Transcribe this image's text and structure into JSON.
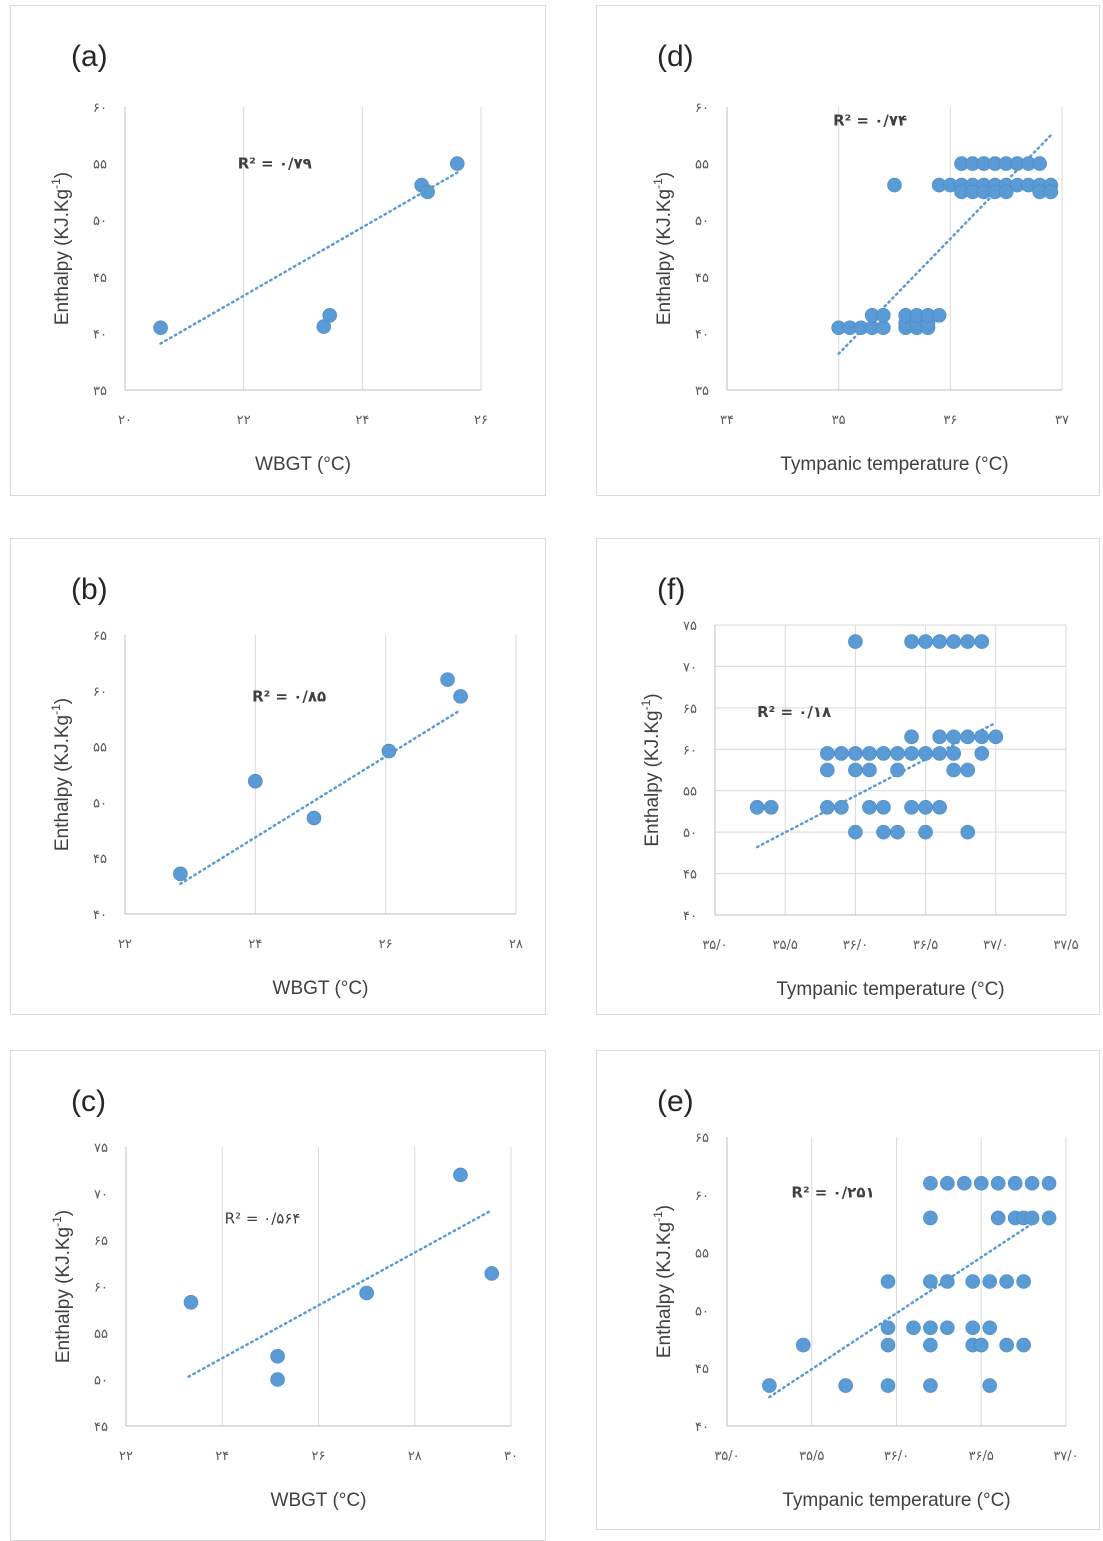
{
  "chart_data": [
    {
      "id": "a",
      "type": "scatter",
      "panel_label": "(a)",
      "xlabel": "WBGT (°C)",
      "ylabel": "Enthalpy (KJ.Kg-1)",
      "xlim": [
        20,
        26
      ],
      "ylim": [
        35,
        60
      ],
      "xticks": [
        20,
        22,
        24,
        26
      ],
      "yticks": [
        35,
        40,
        45,
        50,
        55,
        60
      ],
      "xtick_labels": [
        "۲۰",
        "۲۲",
        "۲۴",
        "۲۶"
      ],
      "ytick_labels": [
        "۳۵",
        "۴۰",
        "۴۵",
        "۵۰",
        "۵۵",
        "۶۰"
      ],
      "grid_x": true,
      "grid_y": false,
      "r2_label": "R² = ۰/۷۹",
      "r2_bold": true,
      "r2_pos": [
        21.9,
        55
      ],
      "trendline": [
        [
          20.6,
          39.1
        ],
        [
          25.6,
          54.2
        ]
      ],
      "points": [
        [
          20.6,
          40.5
        ],
        [
          23.35,
          40.6
        ],
        [
          23.45,
          41.6
        ],
        [
          25.0,
          53.1
        ],
        [
          25.1,
          52.5
        ],
        [
          25.6,
          55.0
        ]
      ]
    },
    {
      "id": "d",
      "type": "scatter",
      "panel_label": "(d)",
      "xlabel": "Tympanic temperature (°C)",
      "ylabel": "Enthalpy (KJ.Kg-1)",
      "xlim": [
        34,
        37
      ],
      "ylim": [
        35,
        60
      ],
      "xticks": [
        34,
        35,
        36,
        37
      ],
      "yticks": [
        35,
        40,
        45,
        50,
        55,
        60
      ],
      "xtick_labels": [
        "۳۴",
        "۳۵",
        "۳۶",
        "۳۷"
      ],
      "ytick_labels": [
        "۳۵",
        "۴۰",
        "۴۵",
        "۵۰",
        "۵۵",
        "۶۰"
      ],
      "grid_x": true,
      "grid_y": false,
      "r2_label": "R² = ۰/۷۴",
      "r2_bold": true,
      "r2_pos": [
        34.95,
        58.8
      ],
      "trendline": [
        [
          35.0,
          38.2
        ],
        [
          36.9,
          57.5
        ]
      ],
      "points": [
        [
          35.0,
          40.5
        ],
        [
          35.1,
          40.5
        ],
        [
          35.2,
          40.5
        ],
        [
          35.3,
          40.5
        ],
        [
          35.4,
          40.5
        ],
        [
          35.3,
          41.6
        ],
        [
          35.4,
          41.6
        ],
        [
          35.6,
          40.5
        ],
        [
          35.7,
          40.5
        ],
        [
          35.8,
          40.5
        ],
        [
          35.6,
          40.9
        ],
        [
          35.7,
          40.9
        ],
        [
          35.8,
          40.9
        ],
        [
          35.6,
          41.6
        ],
        [
          35.7,
          41.6
        ],
        [
          35.8,
          41.6
        ],
        [
          35.9,
          41.6
        ],
        [
          35.5,
          53.1
        ],
        [
          35.9,
          53.1
        ],
        [
          36.0,
          53.1
        ],
        [
          36.1,
          53.1
        ],
        [
          36.2,
          53.1
        ],
        [
          36.3,
          53.1
        ],
        [
          36.4,
          53.1
        ],
        [
          36.5,
          53.1
        ],
        [
          36.6,
          53.1
        ],
        [
          36.7,
          53.1
        ],
        [
          36.8,
          53.1
        ],
        [
          36.9,
          53.1
        ],
        [
          36.1,
          52.5
        ],
        [
          36.2,
          52.5
        ],
        [
          36.3,
          52.5
        ],
        [
          36.4,
          52.5
        ],
        [
          36.5,
          52.5
        ],
        [
          36.8,
          52.5
        ],
        [
          36.9,
          52.5
        ],
        [
          36.1,
          55.0
        ],
        [
          36.2,
          55.0
        ],
        [
          36.3,
          55.0
        ],
        [
          36.4,
          55.0
        ],
        [
          36.5,
          55.0
        ],
        [
          36.6,
          55.0
        ],
        [
          36.7,
          55.0
        ],
        [
          36.8,
          55.0
        ]
      ]
    },
    {
      "id": "b",
      "type": "scatter",
      "panel_label": "(b)",
      "xlabel": "WBGT (°C)",
      "ylabel": "Enthalpy (KJ.Kg-1)",
      "xlim": [
        22,
        28
      ],
      "ylim": [
        40,
        65
      ],
      "xticks": [
        22,
        24,
        26,
        28
      ],
      "yticks": [
        40,
        45,
        50,
        55,
        60,
        65
      ],
      "xtick_labels": [
        "۲۲",
        "۲۴",
        "۲۶",
        "۲۸"
      ],
      "ytick_labels": [
        "۴۰",
        "۴۵",
        "۵۰",
        "۵۵",
        "۶۰",
        "۶۵"
      ],
      "grid_x": true,
      "grid_y": false,
      "r2_label": "R² = ۰/۸۵",
      "r2_bold": true,
      "r2_pos": [
        23.95,
        59.5
      ],
      "trendline": [
        [
          22.85,
          42.7
        ],
        [
          27.1,
          58.1
        ]
      ],
      "points": [
        [
          22.85,
          43.6
        ],
        [
          24.0,
          51.9
        ],
        [
          24.9,
          48.6
        ],
        [
          26.05,
          54.6
        ],
        [
          26.95,
          61.0
        ],
        [
          27.15,
          59.5
        ]
      ]
    },
    {
      "id": "f",
      "type": "scatter",
      "panel_label": "(f)",
      "xlabel": "Tympanic temperature (°C)",
      "ylabel": "Enthalpy (KJ.Kg-1)",
      "xlim": [
        35.0,
        37.5
      ],
      "ylim": [
        40,
        75
      ],
      "xticks": [
        35.0,
        35.5,
        36.0,
        36.5,
        37.0,
        37.5
      ],
      "yticks": [
        40,
        45,
        50,
        55,
        60,
        65,
        70,
        75
      ],
      "xtick_labels": [
        "۳۵/۰",
        "۳۵/۵",
        "۳۶/۰",
        "۳۶/۵",
        "۳۷/۰",
        "۳۷/۵"
      ],
      "ytick_labels": [
        "۴۰",
        "۴۵",
        "۵۰",
        "۵۵",
        "۶۰",
        "۶۵",
        "۷۰",
        "۷۵"
      ],
      "grid_x": true,
      "grid_y": true,
      "r2_label": "R² = ۰/۱۸",
      "r2_bold": true,
      "r2_pos": [
        35.3,
        64.5
      ],
      "trendline": [
        [
          35.3,
          48.2
        ],
        [
          37.0,
          63.2
        ]
      ],
      "points": [
        [
          35.3,
          53
        ],
        [
          35.4,
          53
        ],
        [
          35.8,
          53
        ],
        [
          35.9,
          53
        ],
        [
          36.1,
          53
        ],
        [
          36.2,
          53
        ],
        [
          36.4,
          53
        ],
        [
          36.5,
          53
        ],
        [
          36.6,
          53
        ],
        [
          36.0,
          50
        ],
        [
          36.2,
          50
        ],
        [
          36.3,
          50
        ],
        [
          36.5,
          50
        ],
        [
          36.8,
          50
        ],
        [
          35.8,
          57.5
        ],
        [
          36.0,
          57.5
        ],
        [
          36.1,
          57.5
        ],
        [
          36.3,
          57.5
        ],
        [
          36.7,
          57.5
        ],
        [
          36.8,
          57.5
        ],
        [
          35.8,
          59.5
        ],
        [
          35.9,
          59.5
        ],
        [
          36.0,
          59.5
        ],
        [
          36.1,
          59.5
        ],
        [
          36.2,
          59.5
        ],
        [
          36.3,
          59.5
        ],
        [
          36.4,
          59.5
        ],
        [
          36.5,
          59.5
        ],
        [
          36.6,
          59.5
        ],
        [
          36.7,
          59.5
        ],
        [
          36.9,
          59.5
        ],
        [
          36.4,
          61.5
        ],
        [
          36.6,
          61.5
        ],
        [
          36.7,
          61.5
        ],
        [
          36.8,
          61.5
        ],
        [
          36.9,
          61.5
        ],
        [
          37.0,
          61.5
        ],
        [
          36.0,
          73
        ],
        [
          36.4,
          73
        ],
        [
          36.5,
          73
        ],
        [
          36.6,
          73
        ],
        [
          36.7,
          73
        ],
        [
          36.8,
          73
        ],
        [
          36.9,
          73
        ]
      ]
    },
    {
      "id": "c",
      "type": "scatter",
      "panel_label": "(c)",
      "xlabel": "WBGT (°C)",
      "ylabel": "Enthalpy (KJ.Kg-1)",
      "xlim": [
        22,
        30
      ],
      "ylim": [
        45,
        75
      ],
      "xticks": [
        22,
        24,
        26,
        28,
        30
      ],
      "yticks": [
        45,
        50,
        55,
        60,
        65,
        70,
        75
      ],
      "xtick_labels": [
        "۲۲",
        "۲۴",
        "۲۶",
        "۲۸",
        "۳۰"
      ],
      "ytick_labels": [
        "۴۵",
        "۵۰",
        "۵۵",
        "۶۰",
        "۶۵",
        "۷۰",
        "۷۵"
      ],
      "grid_x": true,
      "grid_y": false,
      "r2_label": "R² = ۰/۵۶۴",
      "r2_bold": false,
      "r2_pos": [
        24.05,
        67.3
      ],
      "trendline": [
        [
          23.3,
          50.3
        ],
        [
          29.6,
          68.2
        ]
      ],
      "points": [
        [
          23.35,
          58.3
        ],
        [
          25.15,
          52.5
        ],
        [
          25.15,
          50.0
        ],
        [
          27.0,
          59.3
        ],
        [
          28.95,
          72.0
        ],
        [
          29.6,
          61.4
        ]
      ]
    },
    {
      "id": "e",
      "type": "scatter",
      "panel_label": "(e)",
      "xlabel": "Tympanic temperature (°C)",
      "ylabel": "Enthalpy (KJ.Kg-1)",
      "xlim": [
        35.0,
        37.0
      ],
      "ylim": [
        40,
        65
      ],
      "xticks": [
        35.0,
        35.5,
        36.0,
        36.5,
        37.0
      ],
      "yticks": [
        40,
        45,
        50,
        55,
        60,
        65
      ],
      "xtick_labels": [
        "۳۵/۰",
        "۳۵/۵",
        "۳۶/۰",
        "۳۶/۵",
        "۳۷/۰"
      ],
      "ytick_labels": [
        "۴۰",
        "۴۵",
        "۵۰",
        "۵۵",
        "۶۰",
        "۶۵"
      ],
      "grid_x": true,
      "grid_y": false,
      "r2_label": "R² = ۰/۲۵۱",
      "r2_bold": true,
      "r2_pos": [
        35.38,
        60.2
      ],
      "trendline": [
        [
          35.25,
          42.5
        ],
        [
          36.8,
          57.5
        ]
      ],
      "points": [
        [
          35.25,
          43.5
        ],
        [
          35.45,
          47.0
        ],
        [
          35.7,
          43.5
        ],
        [
          35.95,
          43.5
        ],
        [
          36.2,
          43.5
        ],
        [
          36.55,
          43.5
        ],
        [
          35.95,
          47.0
        ],
        [
          36.2,
          47.0
        ],
        [
          36.45,
          47.0
        ],
        [
          36.5,
          47.0
        ],
        [
          36.65,
          47.0
        ],
        [
          36.75,
          47.0
        ],
        [
          35.95,
          48.5
        ],
        [
          36.1,
          48.5
        ],
        [
          36.2,
          48.5
        ],
        [
          36.3,
          48.5
        ],
        [
          36.45,
          48.5
        ],
        [
          36.55,
          48.5
        ],
        [
          35.95,
          52.5
        ],
        [
          36.2,
          52.5
        ],
        [
          36.3,
          52.5
        ],
        [
          36.45,
          52.5
        ],
        [
          36.55,
          52.5
        ],
        [
          36.65,
          52.5
        ],
        [
          36.75,
          52.5
        ],
        [
          36.2,
          58.0
        ],
        [
          36.6,
          58.0
        ],
        [
          36.7,
          58.0
        ],
        [
          36.75,
          58.0
        ],
        [
          36.8,
          58.0
        ],
        [
          36.9,
          58.0
        ],
        [
          36.2,
          61.0
        ],
        [
          36.3,
          61.0
        ],
        [
          36.4,
          61.0
        ],
        [
          36.5,
          61.0
        ],
        [
          36.6,
          61.0
        ],
        [
          36.7,
          61.0
        ],
        [
          36.8,
          61.0
        ],
        [
          36.9,
          61.0
        ]
      ]
    }
  ]
}
